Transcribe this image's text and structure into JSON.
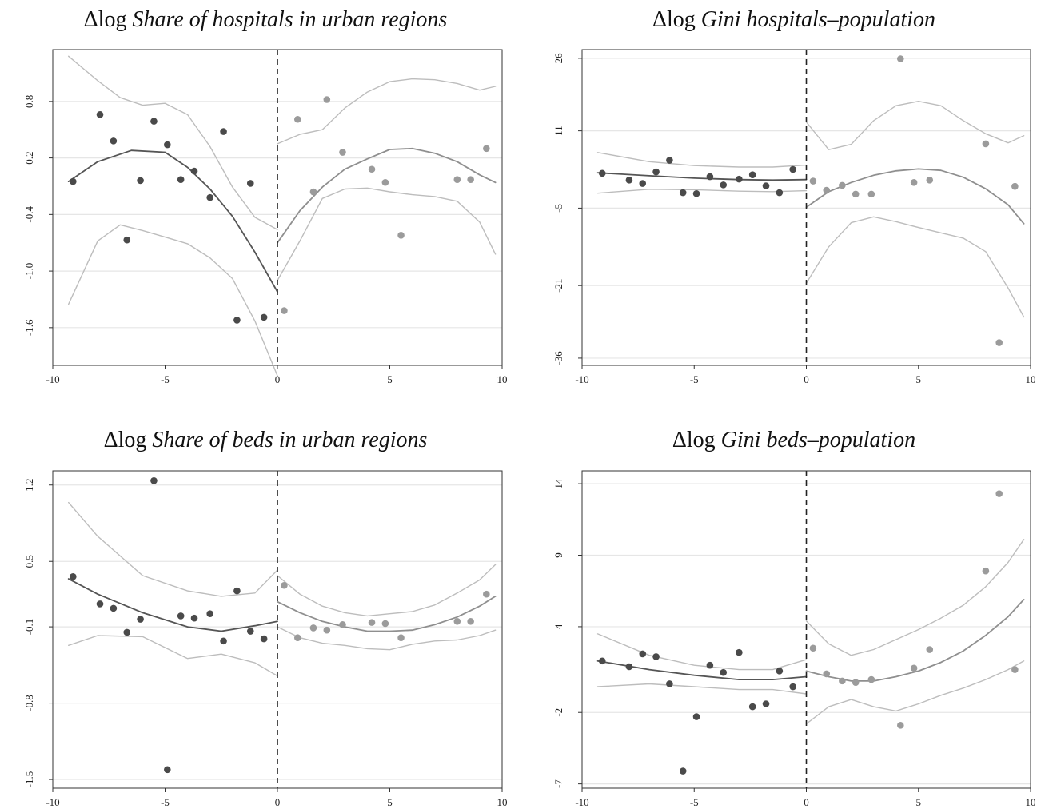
{
  "chart_data": [
    {
      "type": "scatter",
      "title_prefix": "Δlog ",
      "title_italic": "Share of hospitals in urban regions",
      "xlim": [
        -10,
        10
      ],
      "ylim": [
        -2.0,
        1.35
      ],
      "xticks": [
        -10,
        -5,
        0,
        5,
        10
      ],
      "yticks": [
        0.8,
        0.2,
        -0.4,
        -1.0,
        -1.6
      ],
      "ytick_labels": [
        "0.8",
        "0.2",
        "-0.4",
        "-1.0",
        "-1.6"
      ],
      "cutoff": 0,
      "grid": true,
      "series": [
        {
          "side": "left",
          "x": [
            -9.1,
            -7.9,
            -7.3,
            -6.7,
            -6.1,
            -5.5,
            -4.9,
            -4.3,
            -3.7,
            -3.0,
            -2.4,
            -1.8,
            -1.2,
            -0.6
          ],
          "y": [
            -0.05,
            0.66,
            0.38,
            -0.67,
            -0.04,
            0.59,
            0.34,
            -0.03,
            0.06,
            -0.22,
            0.48,
            -1.52,
            -0.07,
            -1.49
          ]
        },
        {
          "side": "right",
          "x": [
            0.3,
            0.9,
            1.6,
            2.2,
            2.9,
            4.2,
            4.8,
            5.5,
            8.0,
            8.6,
            9.3
          ],
          "y": [
            -1.42,
            0.61,
            -0.16,
            0.82,
            0.26,
            0.08,
            -0.06,
            -0.62,
            -0.03,
            -0.03,
            0.3
          ]
        }
      ],
      "fit": [
        {
          "side": "left",
          "x": [
            -9.3,
            -8,
            -6.5,
            -5,
            -4,
            -3,
            -2,
            -1,
            0
          ],
          "y": [
            -0.05,
            0.16,
            0.28,
            0.26,
            0.1,
            -0.13,
            -0.42,
            -0.8,
            -1.22
          ]
        },
        {
          "side": "right",
          "x": [
            0,
            1,
            2,
            3,
            4,
            5,
            6,
            7,
            8,
            9,
            9.7
          ],
          "y": [
            -0.7,
            -0.36,
            -0.11,
            0.08,
            0.19,
            0.29,
            0.3,
            0.25,
            0.16,
            0.02,
            -0.06
          ]
        }
      ],
      "ci_upper": [
        {
          "side": "left",
          "x": [
            -9.3,
            -8,
            -7,
            -6,
            -5,
            -4,
            -3,
            -2,
            -1,
            0
          ],
          "y": [
            1.28,
            1.02,
            0.84,
            0.76,
            0.78,
            0.66,
            0.32,
            -0.11,
            -0.43,
            -0.56
          ]
        },
        {
          "side": "right",
          "x": [
            0,
            1,
            2,
            3,
            4,
            5,
            6,
            7,
            8,
            9,
            9.7
          ],
          "y": [
            0.35,
            0.45,
            0.5,
            0.73,
            0.9,
            1.01,
            1.04,
            1.03,
            0.99,
            0.92,
            0.96
          ]
        }
      ],
      "ci_lower": [
        {
          "side": "left",
          "x": [
            -9.3,
            -8,
            -7,
            -6,
            -5,
            -4,
            -3,
            -2,
            -1,
            0
          ],
          "y": [
            -1.35,
            -0.68,
            -0.51,
            -0.57,
            -0.64,
            -0.71,
            -0.86,
            -1.08,
            -1.53,
            -2.11
          ]
        },
        {
          "side": "right",
          "x": [
            0,
            1,
            2,
            3,
            4,
            5,
            6,
            7,
            8,
            9,
            9.7
          ],
          "y": [
            -1.1,
            -0.68,
            -0.23,
            -0.13,
            -0.12,
            -0.16,
            -0.19,
            -0.21,
            -0.26,
            -0.48,
            -0.82
          ]
        }
      ]
    },
    {
      "type": "scatter",
      "title_prefix": "Δlog ",
      "title_italic": "Gini hospitals–population",
      "xlim": [
        -10,
        10
      ],
      "ylim": [
        -37.5,
        27.8
      ],
      "xticks": [
        -10,
        -5,
        0,
        5,
        10
      ],
      "yticks": [
        26,
        11,
        -5,
        -21,
        -36
      ],
      "ytick_labels": [
        "26",
        "11",
        "-5",
        "-21",
        "-36"
      ],
      "cutoff": 0,
      "grid": true,
      "series": [
        {
          "side": "left",
          "x": [
            -9.1,
            -7.9,
            -7.3,
            -6.7,
            -6.1,
            -5.5,
            -4.9,
            -4.3,
            -3.7,
            -3.0,
            -2.4,
            -1.8,
            -1.2,
            -0.6
          ],
          "y": [
            2.2,
            0.8,
            0.1,
            2.5,
            4.9,
            -1.8,
            -2.0,
            1.5,
            -0.2,
            1.0,
            1.9,
            -0.4,
            -1.8,
            3.0
          ]
        },
        {
          "side": "right",
          "x": [
            0.3,
            0.9,
            1.6,
            2.2,
            2.9,
            4.2,
            4.8,
            5.5,
            8.0,
            8.6,
            9.3
          ],
          "y": [
            0.6,
            -1.3,
            -0.3,
            -2.1,
            -2.1,
            25.9,
            0.3,
            0.8,
            8.3,
            -32.8,
            -0.5
          ]
        }
      ],
      "fit": [
        {
          "side": "left",
          "x": [
            -9.3,
            -7,
            -5,
            -3,
            -1.5,
            0
          ],
          "y": [
            2.3,
            1.7,
            1.2,
            0.9,
            0.8,
            0.9
          ]
        },
        {
          "side": "right",
          "x": [
            0,
            1,
            2,
            3,
            4,
            5,
            6,
            7,
            8,
            9,
            9.7
          ],
          "y": [
            -4.8,
            -1.6,
            0.3,
            1.8,
            2.7,
            3.1,
            2.8,
            1.4,
            -1.0,
            -4.3,
            -8.2
          ]
        }
      ],
      "ci_upper": [
        {
          "side": "left",
          "x": [
            -9.3,
            -7,
            -5,
            -3,
            -1.5,
            0
          ],
          "y": [
            6.5,
            4.6,
            3.8,
            3.5,
            3.5,
            3.9
          ]
        },
        {
          "side": "right",
          "x": [
            0,
            1,
            2,
            3,
            4,
            5,
            6,
            7,
            8,
            9,
            9.7
          ],
          "y": [
            12.8,
            7.1,
            8.2,
            13.1,
            16.2,
            17.1,
            16.2,
            13.1,
            10.4,
            8.5,
            10.0
          ]
        }
      ],
      "ci_lower": [
        {
          "side": "left",
          "x": [
            -9.3,
            -7,
            -5,
            -3,
            -1.5,
            0
          ],
          "y": [
            -1.9,
            -1.1,
            -1.2,
            -1.5,
            -1.6,
            -1.4
          ]
        },
        {
          "side": "right",
          "x": [
            0,
            1,
            2,
            3,
            4,
            5,
            6,
            7,
            8,
            9,
            9.7
          ],
          "y": [
            -20.5,
            -13.0,
            -8.0,
            -6.8,
            -7.8,
            -9.0,
            -10.1,
            -11.2,
            -14.0,
            -21.5,
            -27.5
          ]
        }
      ]
    },
    {
      "type": "scatter",
      "title_prefix": "Δlog ",
      "title_italic": "Share of beds in urban regions",
      "xlim": [
        -10,
        10
      ],
      "ylim": [
        -1.58,
        1.33
      ],
      "xticks": [
        -10,
        -5,
        0,
        5,
        10
      ],
      "yticks": [
        1.2,
        0.5,
        -0.1,
        -0.8,
        -1.5
      ],
      "ytick_labels": [
        "1.2",
        "0.5",
        "-0.1",
        "-0.8",
        "-1.5"
      ],
      "cutoff": 0,
      "grid": true,
      "series": [
        {
          "side": "left",
          "x": [
            -9.1,
            -7.9,
            -7.3,
            -6.7,
            -6.1,
            -5.5,
            -4.9,
            -4.3,
            -3.7,
            -3.0,
            -2.4,
            -1.8,
            -1.2,
            -0.6
          ],
          "y": [
            0.36,
            0.11,
            0.07,
            -0.15,
            -0.03,
            1.24,
            -1.41,
            0.0,
            -0.02,
            0.02,
            -0.23,
            0.23,
            -0.14,
            -0.21
          ]
        },
        {
          "side": "right",
          "x": [
            0.3,
            0.9,
            1.6,
            2.2,
            2.9,
            4.2,
            4.8,
            5.5,
            8.0,
            8.6,
            9.3
          ],
          "y": [
            0.28,
            -0.2,
            -0.11,
            -0.13,
            -0.08,
            -0.06,
            -0.07,
            -0.2,
            -0.05,
            -0.05,
            0.2
          ]
        }
      ],
      "fit": [
        {
          "side": "left",
          "x": [
            -9.3,
            -8,
            -6,
            -4,
            -2.5,
            -1,
            0
          ],
          "y": [
            0.34,
            0.2,
            0.03,
            -0.1,
            -0.14,
            -0.09,
            -0.05
          ]
        },
        {
          "side": "right",
          "x": [
            0,
            1,
            2,
            3,
            4,
            5,
            6,
            7,
            8,
            9,
            9.7
          ],
          "y": [
            0.13,
            0.03,
            -0.05,
            -0.1,
            -0.14,
            -0.14,
            -0.13,
            -0.08,
            -0.01,
            0.09,
            0.18
          ]
        }
      ],
      "ci_upper": [
        {
          "side": "left",
          "x": [
            -9.3,
            -8,
            -6,
            -4,
            -2.5,
            -1,
            0
          ],
          "y": [
            1.04,
            0.73,
            0.37,
            0.23,
            0.18,
            0.21,
            0.42
          ]
        },
        {
          "side": "right",
          "x": [
            0,
            1,
            2,
            3,
            4,
            5,
            6,
            7,
            8,
            9,
            9.7
          ],
          "y": [
            0.37,
            0.2,
            0.09,
            0.03,
            0.0,
            0.02,
            0.04,
            0.1,
            0.21,
            0.33,
            0.47
          ]
        }
      ],
      "ci_lower": [
        {
          "side": "left",
          "x": [
            -9.3,
            -8,
            -6,
            -4,
            -2.5,
            -1,
            0
          ],
          "y": [
            -0.27,
            -0.18,
            -0.19,
            -0.39,
            -0.35,
            -0.43,
            -0.55
          ]
        },
        {
          "side": "right",
          "x": [
            0,
            1,
            2,
            3,
            4,
            5,
            6,
            7,
            8,
            9,
            9.7
          ],
          "y": [
            -0.1,
            -0.2,
            -0.25,
            -0.27,
            -0.3,
            -0.31,
            -0.26,
            -0.23,
            -0.22,
            -0.18,
            -0.13
          ]
        }
      ]
    },
    {
      "type": "scatter",
      "title_prefix": "Δlog ",
      "title_italic": "Gini beds–population",
      "xlim": [
        -10,
        10
      ],
      "ylim": [
        -7.3,
        14.9
      ],
      "xticks": [
        -10,
        -5,
        0,
        5,
        10
      ],
      "yticks": [
        14,
        9,
        4,
        -2,
        -7
      ],
      "ytick_labels": [
        "14",
        "9",
        "4",
        "-2",
        "-7"
      ],
      "cutoff": 0,
      "grid": true,
      "series": [
        {
          "side": "left",
          "x": [
            -9.1,
            -7.9,
            -7.3,
            -6.7,
            -6.1,
            -5.5,
            -4.9,
            -4.3,
            -3.7,
            -3.0,
            -2.4,
            -1.8,
            -1.2,
            -0.6
          ],
          "y": [
            1.6,
            1.2,
            2.1,
            1.9,
            0.0,
            -6.1,
            -2.3,
            1.3,
            0.8,
            2.2,
            -1.6,
            -1.4,
            0.9,
            -0.2
          ]
        },
        {
          "side": "right",
          "x": [
            0.3,
            0.9,
            1.6,
            2.2,
            2.9,
            4.2,
            4.8,
            5.5,
            8.0,
            8.6,
            9.3
          ],
          "y": [
            2.5,
            0.7,
            0.2,
            0.1,
            0.3,
            -2.9,
            1.1,
            2.4,
            7.9,
            13.3,
            1.0
          ]
        }
      ],
      "fit": [
        {
          "side": "left",
          "x": [
            -9.3,
            -7,
            -5,
            -3,
            -1.5,
            0
          ],
          "y": [
            1.6,
            1.0,
            0.6,
            0.3,
            0.3,
            0.5
          ]
        },
        {
          "side": "right",
          "x": [
            0,
            1,
            2,
            3,
            4,
            5,
            6,
            7,
            8,
            9,
            9.7
          ],
          "y": [
            0.9,
            0.5,
            0.2,
            0.2,
            0.5,
            0.9,
            1.5,
            2.3,
            3.4,
            4.7,
            5.9
          ]
        }
      ],
      "ci_upper": [
        {
          "side": "left",
          "x": [
            -9.3,
            -7,
            -5,
            -3,
            -1.5,
            0
          ],
          "y": [
            3.5,
            2.0,
            1.3,
            1.0,
            1.0,
            1.7
          ]
        },
        {
          "side": "right",
          "x": [
            0,
            1,
            2,
            3,
            4,
            5,
            6,
            7,
            8,
            9,
            9.7
          ],
          "y": [
            4.4,
            2.8,
            2.0,
            2.4,
            3.1,
            3.8,
            4.6,
            5.5,
            6.8,
            8.5,
            10.1
          ]
        }
      ],
      "ci_lower": [
        {
          "side": "left",
          "x": [
            -9.3,
            -7,
            -5,
            -3,
            -1.5,
            0
          ],
          "y": [
            -0.2,
            0.0,
            -0.2,
            -0.4,
            -0.4,
            -0.7
          ]
        },
        {
          "side": "right",
          "x": [
            0,
            1,
            2,
            3,
            4,
            5,
            6,
            7,
            8,
            9,
            9.7
          ],
          "y": [
            -2.8,
            -1.6,
            -1.1,
            -1.6,
            -1.9,
            -1.4,
            -0.8,
            -0.3,
            0.3,
            1.0,
            1.6
          ]
        }
      ]
    }
  ]
}
